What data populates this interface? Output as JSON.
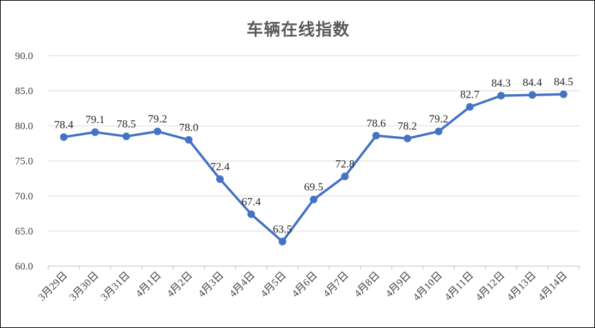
{
  "chart_data": {
    "type": "line",
    "title": "车辆在线指数",
    "xlabel": "",
    "ylabel": "",
    "ylim": [
      60,
      90
    ],
    "yticks": [
      "60.0",
      "65.0",
      "70.0",
      "75.0",
      "80.0",
      "85.0",
      "90.0"
    ],
    "grid": true,
    "legend": "none",
    "color": "#4472C4",
    "categories": [
      "3月29日",
      "3月30日",
      "3月31日",
      "4月1日",
      "4月2日",
      "4月3日",
      "4月4日",
      "4月5日",
      "4月6日",
      "4月7日",
      "4月8日",
      "4月9日",
      "4月10日",
      "4月11日",
      "4月12日",
      "4月13日",
      "4月14日"
    ],
    "values": [
      78.4,
      79.1,
      78.5,
      79.2,
      78.0,
      72.4,
      67.4,
      63.5,
      69.5,
      72.8,
      78.6,
      78.2,
      79.2,
      82.7,
      84.3,
      84.4,
      84.5
    ],
    "data_labels": [
      "78.4",
      "79.1",
      "78.5",
      "79.2",
      "78.0",
      "72.4",
      "67.4",
      "63.5",
      "69.5",
      "72.8",
      "78.6",
      "78.2",
      "79.2",
      "82.7",
      "84.3",
      "84.4",
      "84.5"
    ]
  }
}
